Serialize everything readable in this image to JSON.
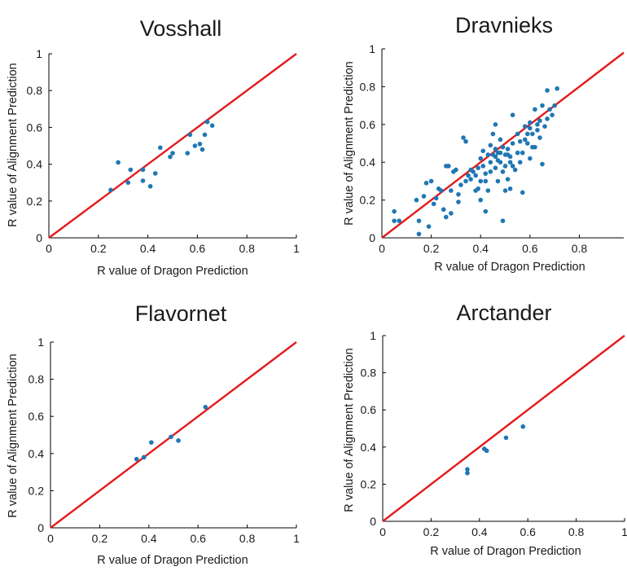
{
  "accent_colors": {
    "points": "#1f77b4",
    "identity_line": "#e31a1c"
  },
  "chart_data": [
    {
      "type": "scatter",
      "title": "Vosshall",
      "xlabel": "R value of Dragon Prediction",
      "ylabel": "R value of Alignment Prediction",
      "xlim": [
        0,
        1
      ],
      "ylim": [
        0,
        1
      ],
      "xticks": [
        "0",
        "0.2",
        "0.4",
        "0.6",
        "0.8",
        "1"
      ],
      "yticks": [
        "0",
        "0.2",
        "0.4",
        "0.6",
        "0.8",
        "1"
      ],
      "grid": false,
      "reference_line": "y = x",
      "points": [
        [
          0.25,
          0.26
        ],
        [
          0.28,
          0.41
        ],
        [
          0.32,
          0.3
        ],
        [
          0.33,
          0.37
        ],
        [
          0.38,
          0.37
        ],
        [
          0.38,
          0.31
        ],
        [
          0.41,
          0.28
        ],
        [
          0.43,
          0.35
        ],
        [
          0.45,
          0.49
        ],
        [
          0.49,
          0.44
        ],
        [
          0.5,
          0.46
        ],
        [
          0.56,
          0.46
        ],
        [
          0.57,
          0.56
        ],
        [
          0.59,
          0.5
        ],
        [
          0.61,
          0.51
        ],
        [
          0.62,
          0.48
        ],
        [
          0.63,
          0.56
        ],
        [
          0.64,
          0.63
        ],
        [
          0.66,
          0.61
        ]
      ]
    },
    {
      "type": "scatter",
      "title": "Dravnieks",
      "xlabel": "R value of Dragon Prediction",
      "ylabel": "R value of Alignment Prediction",
      "xlim": [
        0,
        0.98
      ],
      "ylim": [
        0,
        1
      ],
      "xticks": [
        "0",
        "0.2",
        "0.4",
        "0.6",
        "0.8"
      ],
      "yticks": [
        "0",
        "0.2",
        "0.4",
        "0.6",
        "0.8",
        "1"
      ],
      "grid": false,
      "reference_line": "y = x",
      "points": [
        [
          0.05,
          0.09
        ],
        [
          0.05,
          0.14
        ],
        [
          0.07,
          0.09
        ],
        [
          0.14,
          0.2
        ],
        [
          0.15,
          0.09
        ],
        [
          0.15,
          0.02
        ],
        [
          0.17,
          0.22
        ],
        [
          0.18,
          0.29
        ],
        [
          0.19,
          0.06
        ],
        [
          0.2,
          0.3
        ],
        [
          0.21,
          0.18
        ],
        [
          0.22,
          0.21
        ],
        [
          0.23,
          0.26
        ],
        [
          0.24,
          0.25
        ],
        [
          0.25,
          0.15
        ],
        [
          0.26,
          0.11
        ],
        [
          0.26,
          0.38
        ],
        [
          0.27,
          0.38
        ],
        [
          0.28,
          0.25
        ],
        [
          0.28,
          0.13
        ],
        [
          0.29,
          0.35
        ],
        [
          0.3,
          0.36
        ],
        [
          0.31,
          0.19
        ],
        [
          0.31,
          0.23
        ],
        [
          0.32,
          0.28
        ],
        [
          0.33,
          0.53
        ],
        [
          0.34,
          0.51
        ],
        [
          0.35,
          0.33
        ],
        [
          0.36,
          0.31
        ],
        [
          0.37,
          0.35
        ],
        [
          0.38,
          0.25
        ],
        [
          0.38,
          0.33
        ],
        [
          0.39,
          0.26
        ],
        [
          0.4,
          0.2
        ],
        [
          0.4,
          0.42
        ],
        [
          0.41,
          0.38
        ],
        [
          0.41,
          0.46
        ],
        [
          0.42,
          0.14
        ],
        [
          0.42,
          0.34
        ],
        [
          0.43,
          0.25
        ],
        [
          0.44,
          0.49
        ],
        [
          0.45,
          0.44
        ],
        [
          0.45,
          0.55
        ],
        [
          0.46,
          0.37
        ],
        [
          0.46,
          0.47
        ],
        [
          0.47,
          0.3
        ],
        [
          0.47,
          0.41
        ],
        [
          0.48,
          0.45
        ],
        [
          0.48,
          0.52
        ],
        [
          0.49,
          0.09
        ],
        [
          0.49,
          0.35
        ],
        [
          0.5,
          0.44
        ],
        [
          0.5,
          0.25
        ],
        [
          0.51,
          0.31
        ],
        [
          0.51,
          0.47
        ],
        [
          0.52,
          0.26
        ],
        [
          0.52,
          0.43
        ],
        [
          0.53,
          0.5
        ],
        [
          0.53,
          0.65
        ],
        [
          0.54,
          0.36
        ],
        [
          0.55,
          0.55
        ],
        [
          0.56,
          0.4
        ],
        [
          0.57,
          0.24
        ],
        [
          0.57,
          0.45
        ],
        [
          0.58,
          0.59
        ],
        [
          0.59,
          0.5
        ],
        [
          0.6,
          0.61
        ],
        [
          0.6,
          0.42
        ],
        [
          0.61,
          0.55
        ],
        [
          0.62,
          0.48
        ],
        [
          0.62,
          0.68
        ],
        [
          0.63,
          0.57
        ],
        [
          0.64,
          0.53
        ],
        [
          0.64,
          0.62
        ],
        [
          0.65,
          0.39
        ],
        [
          0.65,
          0.7
        ],
        [
          0.66,
          0.59
        ],
        [
          0.67,
          0.63
        ],
        [
          0.67,
          0.78
        ],
        [
          0.68,
          0.68
        ],
        [
          0.69,
          0.65
        ],
        [
          0.7,
          0.7
        ],
        [
          0.71,
          0.79
        ],
        [
          0.43,
          0.44
        ],
        [
          0.44,
          0.4
        ],
        [
          0.46,
          0.43
        ],
        [
          0.48,
          0.4
        ],
        [
          0.49,
          0.48
        ],
        [
          0.5,
          0.38
        ],
        [
          0.46,
          0.6
        ],
        [
          0.39,
          0.37
        ],
        [
          0.36,
          0.36
        ],
        [
          0.34,
          0.3
        ],
        [
          0.4,
          0.3
        ],
        [
          0.52,
          0.4
        ],
        [
          0.55,
          0.45
        ],
        [
          0.58,
          0.52
        ],
        [
          0.6,
          0.58
        ],
        [
          0.63,
          0.6
        ],
        [
          0.42,
          0.3
        ],
        [
          0.44,
          0.35
        ],
        [
          0.47,
          0.45
        ],
        [
          0.51,
          0.44
        ],
        [
          0.53,
          0.38
        ],
        [
          0.56,
          0.51
        ],
        [
          0.59,
          0.55
        ],
        [
          0.61,
          0.48
        ]
      ]
    },
    {
      "type": "scatter",
      "title": "Flavornet",
      "xlabel": "R value of Dragon Prediction",
      "ylabel": "R value of Alignment Prediction",
      "xlim": [
        0,
        1
      ],
      "ylim": [
        0,
        1
      ],
      "xticks": [
        "0",
        "0.2",
        "0.4",
        "0.6",
        "0.8",
        "1"
      ],
      "yticks": [
        "0",
        "0.2",
        "0.4",
        "0.6",
        "0.8",
        "1"
      ],
      "grid": false,
      "reference_line": "y = x",
      "points": [
        [
          0.35,
          0.37
        ],
        [
          0.38,
          0.38
        ],
        [
          0.41,
          0.46
        ],
        [
          0.49,
          0.49
        ],
        [
          0.52,
          0.47
        ],
        [
          0.63,
          0.65
        ]
      ]
    },
    {
      "type": "scatter",
      "title": "Arctander",
      "xlabel": "R value of Dragon Prediction",
      "ylabel": "R value of Alignment Prediction",
      "xlim": [
        0,
        1
      ],
      "ylim": [
        0,
        1
      ],
      "xticks": [
        "0",
        "0.2",
        "0.4",
        "0.6",
        "0.8",
        "1"
      ],
      "yticks": [
        "0",
        "0.2",
        "0.4",
        "0.6",
        "0.8",
        "1"
      ],
      "grid": false,
      "reference_line": "y = x",
      "points": [
        [
          0.35,
          0.28
        ],
        [
          0.35,
          0.26
        ],
        [
          0.42,
          0.39
        ],
        [
          0.43,
          0.38
        ],
        [
          0.51,
          0.45
        ],
        [
          0.58,
          0.51
        ]
      ]
    }
  ]
}
